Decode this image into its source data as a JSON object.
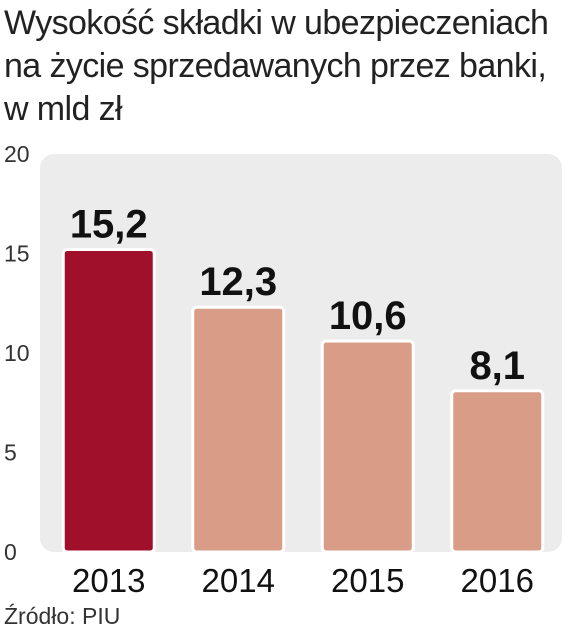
{
  "title_lines": [
    "Wysokość składki w ubezpieczeniach",
    "na życie sprzedawanych przez banki,",
    "w mld zł"
  ],
  "source": "Źródło: PIU",
  "colors": {
    "highlight": "#a0102b",
    "bar": "#d89c87",
    "panel": "#ececec",
    "text": "#111111"
  },
  "chart_data": {
    "type": "bar",
    "categories": [
      "2013",
      "2014",
      "2015",
      "2016"
    ],
    "values": [
      15.2,
      12.3,
      10.6,
      8.1
    ],
    "value_labels": [
      "15,2",
      "12,3",
      "10,6",
      "8,1"
    ],
    "title": "Wysokość składki w ubezpieczeniach na życie sprzedawanych przez banki, w mld zł",
    "xlabel": "",
    "ylabel": "",
    "ylim": [
      0,
      20
    ],
    "yticks": [
      0,
      5,
      10,
      15,
      20
    ],
    "highlight_index": 0,
    "grid": false,
    "legend": "none"
  }
}
